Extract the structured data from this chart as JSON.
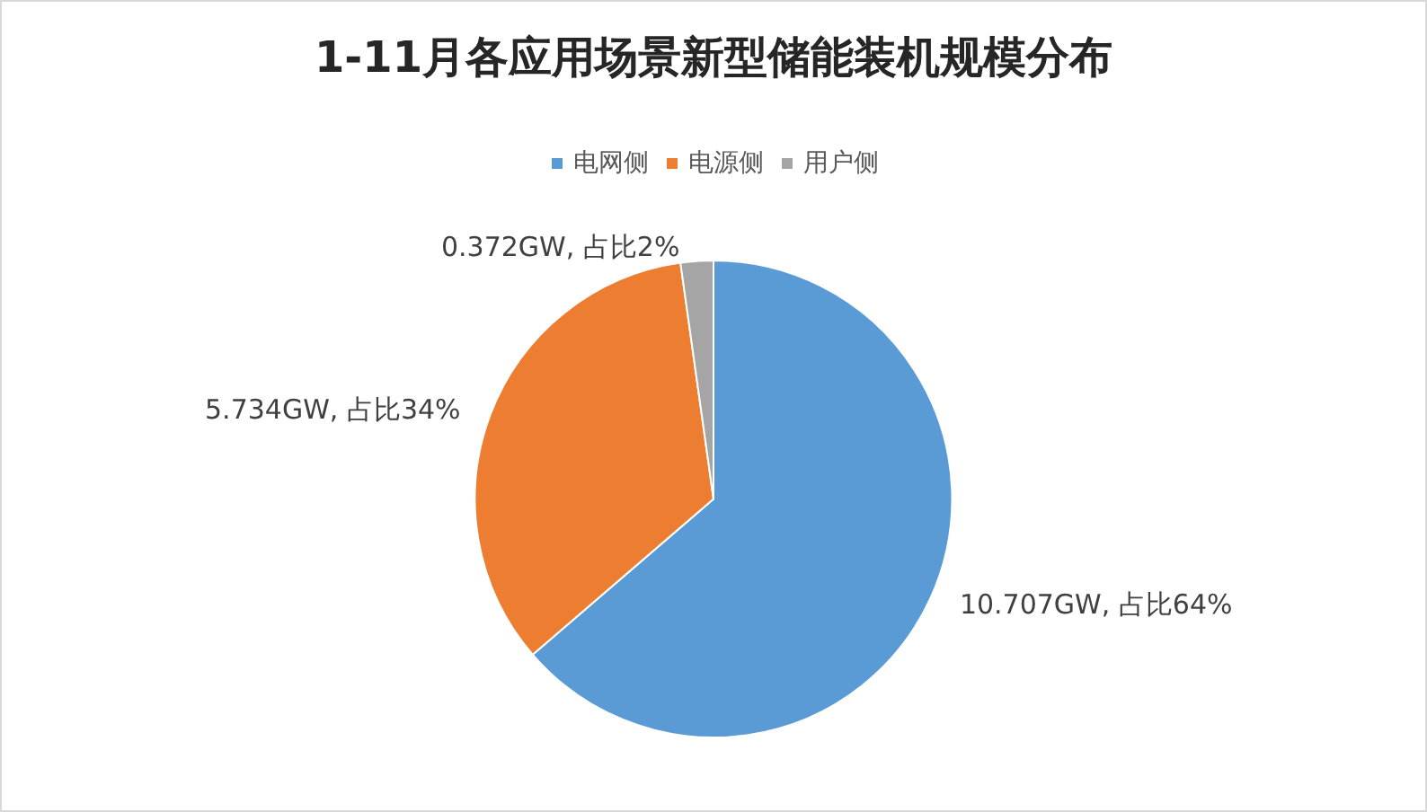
{
  "chart_data": {
    "type": "pie",
    "title": "1-11月各应用场景新型储能装机规模分布",
    "categories": [
      "电网侧",
      "电源侧",
      "用户侧"
    ],
    "values": [
      10.707,
      5.734,
      0.372
    ],
    "colors": [
      "#5b9bd5",
      "#ed7d31",
      "#a5a5a5"
    ],
    "value_labels": [
      "10.707GW, 占比64%",
      "5.734GW, 占比34%",
      "0.372GW, 占比2%"
    ],
    "legend": "top"
  }
}
